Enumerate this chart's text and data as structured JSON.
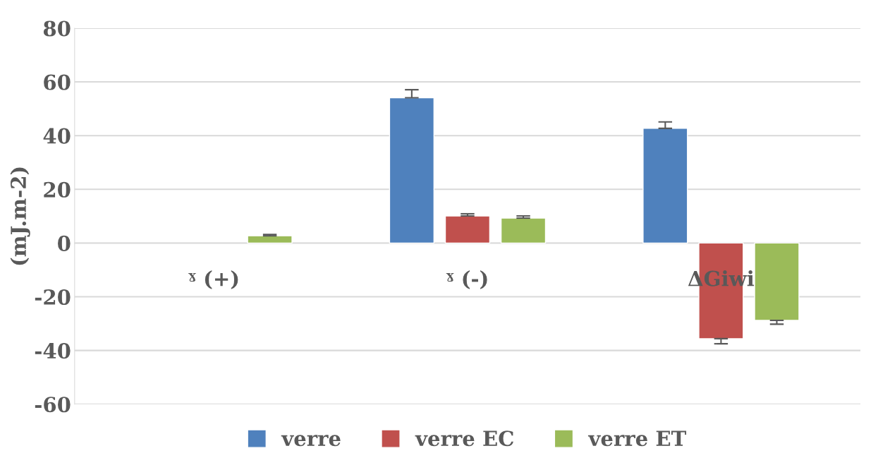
{
  "chart_data": {
    "type": "bar",
    "ylabel": "(mJ.m-2)",
    "categories": [
      "ˠ (+)",
      "ˠ (-)",
      "ΔGiwi"
    ],
    "series": [
      {
        "name": "verre",
        "color": "#4f81bd",
        "values": [
          null,
          54.1,
          42.7
        ],
        "errors": [
          null,
          [
            54.1,
            57.1
          ],
          [
            42.7,
            45.1
          ]
        ]
      },
      {
        "name": "verre EC",
        "color": "#c0504d",
        "values": [
          null,
          10.1,
          -35.6
        ],
        "errors": [
          null,
          [
            10.1,
            10.9
          ],
          [
            -37.5,
            -35.6
          ]
        ]
      },
      {
        "name": "verre ET",
        "color": "#9bbb59",
        "values": [
          2.7,
          9.3,
          -28.8
        ],
        "errors": [
          [
            2.7,
            3.2
          ],
          [
            9.3,
            10.1
          ],
          [
            -30.2,
            -28.8
          ]
        ]
      }
    ],
    "ylim": [
      -60,
      80
    ],
    "yticks": [
      -60,
      -40,
      -20,
      0,
      20,
      40,
      60,
      80
    ],
    "grid": "y",
    "legend": "bottom"
  }
}
